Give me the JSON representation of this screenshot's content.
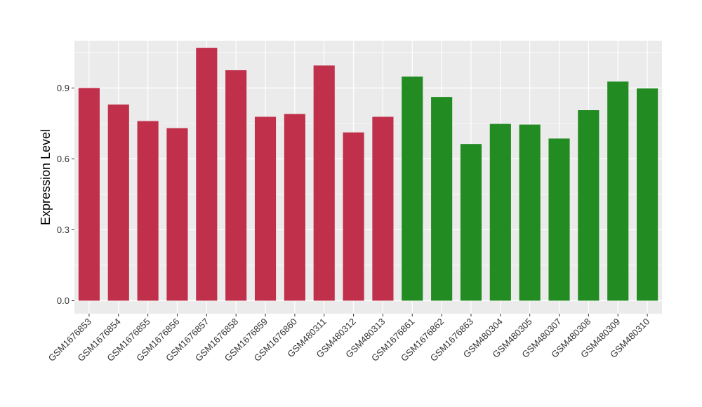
{
  "chart_data": {
    "type": "bar",
    "title": "",
    "xlabel": "",
    "ylabel": "Expression Level",
    "ylim": [
      -0.055,
      1.1
    ],
    "yticks": [
      0.0,
      0.3,
      0.6,
      0.9
    ],
    "ytick_labels": [
      "0.0",
      "0.3",
      "0.6",
      "0.9"
    ],
    "grid": true,
    "legend": "none",
    "categories": [
      "GSM1676853",
      "GSM1676854",
      "GSM1676855",
      "GSM1676856",
      "GSM1676857",
      "GSM1676858",
      "GSM1676859",
      "GSM1676860",
      "GSM480311",
      "GSM480312",
      "GSM480313",
      "GSM1676861",
      "GSM1676862",
      "GSM1676863",
      "GSM480304",
      "GSM480305",
      "GSM480307",
      "GSM480308",
      "GSM480309",
      "GSM480310"
    ],
    "values": [
      0.9,
      0.83,
      0.76,
      0.73,
      1.07,
      0.975,
      0.778,
      0.79,
      0.995,
      0.712,
      0.778,
      0.948,
      0.862,
      0.663,
      0.748,
      0.745,
      0.686,
      0.806,
      0.927,
      0.898
    ],
    "groups": [
      0,
      0,
      0,
      0,
      0,
      0,
      0,
      0,
      0,
      0,
      0,
      1,
      1,
      1,
      1,
      1,
      1,
      1,
      1,
      1
    ],
    "group_colors": [
      "#c0304a",
      "#228b22"
    ],
    "panel_background": "#ebebeb",
    "gridline_color": "#ffffff"
  }
}
